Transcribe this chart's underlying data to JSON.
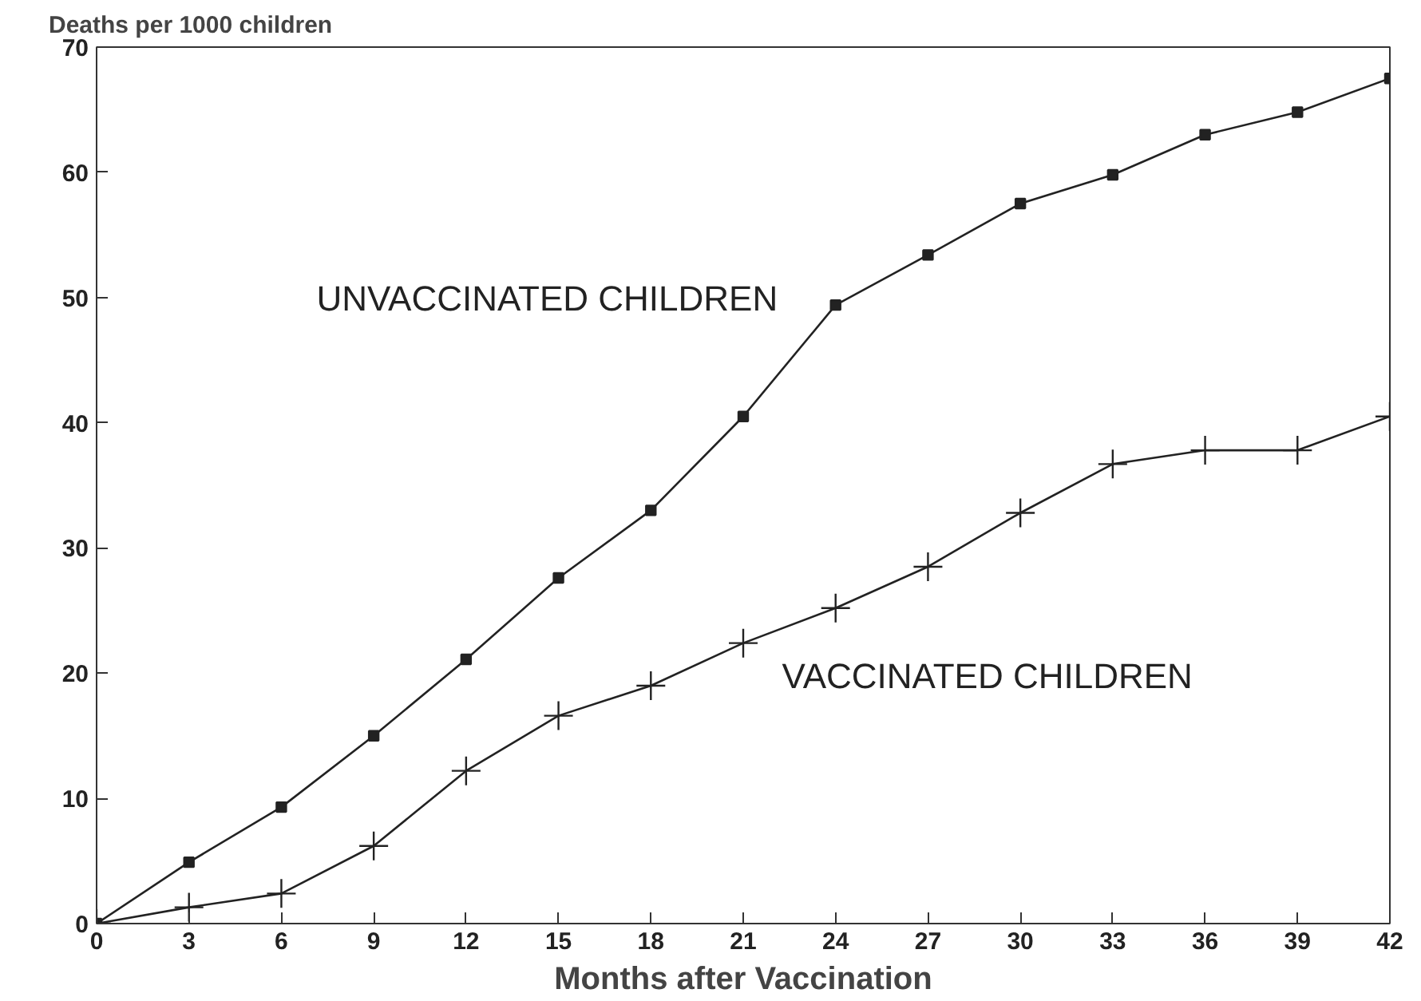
{
  "chart_data": {
    "type": "line",
    "ylabel": "Deaths per 1000 children",
    "xlabel": "Months after Vaccination",
    "x": [
      0,
      3,
      6,
      9,
      12,
      15,
      18,
      21,
      24,
      27,
      30,
      33,
      36,
      39,
      42
    ],
    "series": [
      {
        "name": "UNVACCINATED CHILDREN",
        "color": "#222222",
        "marker": "square",
        "values": [
          0,
          4.9,
          9.3,
          15.0,
          21.1,
          27.6,
          33.0,
          40.5,
          49.4,
          53.4,
          57.5,
          59.8,
          63.0,
          64.8,
          67.5
        ]
      },
      {
        "name": "VACCINATED CHILDREN",
        "color": "#222222",
        "marker": "cross",
        "values": [
          0,
          1.3,
          2.4,
          6.2,
          12.2,
          16.6,
          19.0,
          22.4,
          25.2,
          28.5,
          32.8,
          36.7,
          37.8,
          37.8,
          40.5
        ]
      }
    ],
    "xlim": [
      0,
      42
    ],
    "ylim": [
      0,
      70
    ],
    "xticks": [
      0,
      3,
      6,
      9,
      12,
      15,
      18,
      21,
      24,
      27,
      30,
      33,
      36,
      39,
      42
    ],
    "yticks": [
      0,
      10,
      20,
      30,
      40,
      50,
      60,
      70
    ],
    "grid": false,
    "legend": false,
    "line_style": "solid"
  }
}
